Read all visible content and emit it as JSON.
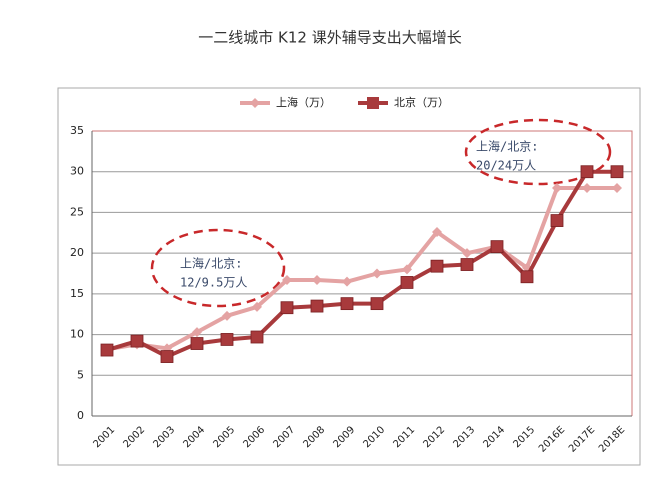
{
  "chart_data": {
    "type": "line",
    "title": "一二线城市 K12 课外辅导支出大幅增长",
    "categories": [
      "2001",
      "2002",
      "2003",
      "2004",
      "2005",
      "2006",
      "2007",
      "2008",
      "2009",
      "2010",
      "2011",
      "2012",
      "2013",
      "2014",
      "2015",
      "2016E",
      "2017E",
      "2018E"
    ],
    "series": [
      {
        "name": "上海（万）",
        "color": "#e4a3a3",
        "marker": "diamond",
        "values": [
          8.2,
          8.8,
          8.3,
          10.3,
          12.3,
          13.4,
          16.7,
          16.7,
          16.5,
          17.5,
          18.0,
          22.6,
          20.0,
          20.8,
          18.2,
          28.0,
          28.0,
          28.0
        ]
      },
      {
        "name": "北京（万）",
        "color": "#a83a3c",
        "marker": "square",
        "values": [
          8.1,
          9.2,
          7.3,
          8.9,
          9.4,
          9.7,
          13.3,
          13.5,
          13.8,
          13.8,
          16.4,
          18.4,
          18.6,
          20.8,
          17.1,
          24.0,
          30.0,
          30.0
        ]
      }
    ],
    "ylim": [
      0,
      35
    ],
    "yticks": [
      0,
      5,
      10,
      15,
      20,
      25,
      30,
      35
    ],
    "grid": true,
    "legend": "top",
    "annotations": [
      {
        "line1": "上海/北京:",
        "line2": "12/9.5万人"
      },
      {
        "line1": "上海/北京:",
        "line2": "20/24万人"
      }
    ]
  }
}
